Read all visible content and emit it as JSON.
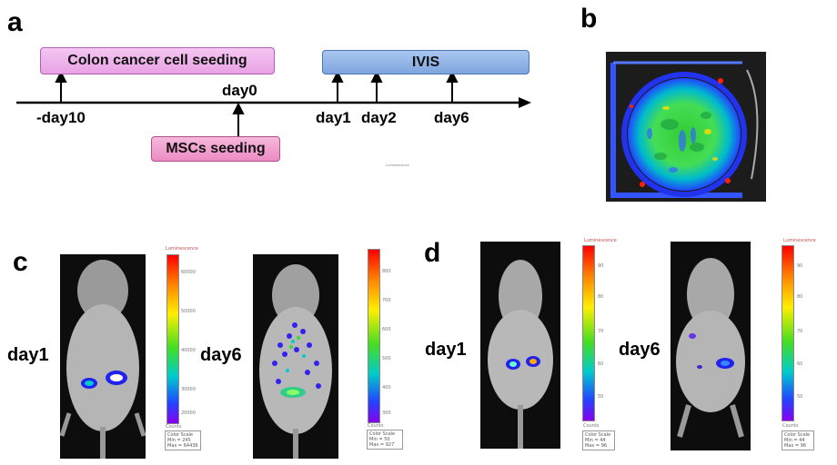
{
  "panels": {
    "a": {
      "letter": "a",
      "boxes": {
        "colon": "Colon cancer cell seeding",
        "msc": "MSCs seeding",
        "ivis": "IVIS"
      },
      "ticks": [
        "-day10",
        "day0",
        "day1",
        "day2",
        "day6"
      ],
      "stray_text": "Luminescence"
    },
    "b": {
      "letter": "b"
    },
    "c": {
      "letter": "c",
      "day1": "day1",
      "day6": "day6",
      "scale1": {
        "title": "Luminescence",
        "ticks": [
          "60000",
          "50000",
          "40000",
          "30000",
          "20000"
        ],
        "units": "Counts",
        "info": [
          "Color Scale",
          "Min = 245",
          "Max = 64436"
        ]
      },
      "scale2": {
        "title": "",
        "ticks": [
          "800",
          "700",
          "600",
          "500",
          "400",
          "300"
        ],
        "units": "Counts",
        "info": [
          "Color Scale",
          "Min = 50",
          "Max = 927"
        ]
      }
    },
    "d": {
      "letter": "d",
      "day1": "day1",
      "day6": "day6",
      "scale1": {
        "title": "Luminescence",
        "ticks": [
          "90",
          "80",
          "70",
          "60",
          "50"
        ],
        "units": "Counts",
        "info": [
          "Color Scale",
          "Min = 44",
          "Max = 96"
        ]
      },
      "scale2": {
        "title": "Luminescence",
        "ticks": [
          "90",
          "80",
          "70",
          "60",
          "50"
        ],
        "units": "Counts",
        "info": [
          "Color Scale",
          "Min = 44",
          "Max = 96"
        ]
      }
    }
  },
  "colors": {
    "axis": "#000000",
    "pink_box": "#eeaeea",
    "msc_box": "#f0a0d0",
    "ivis_box": "#8fb2e5"
  }
}
